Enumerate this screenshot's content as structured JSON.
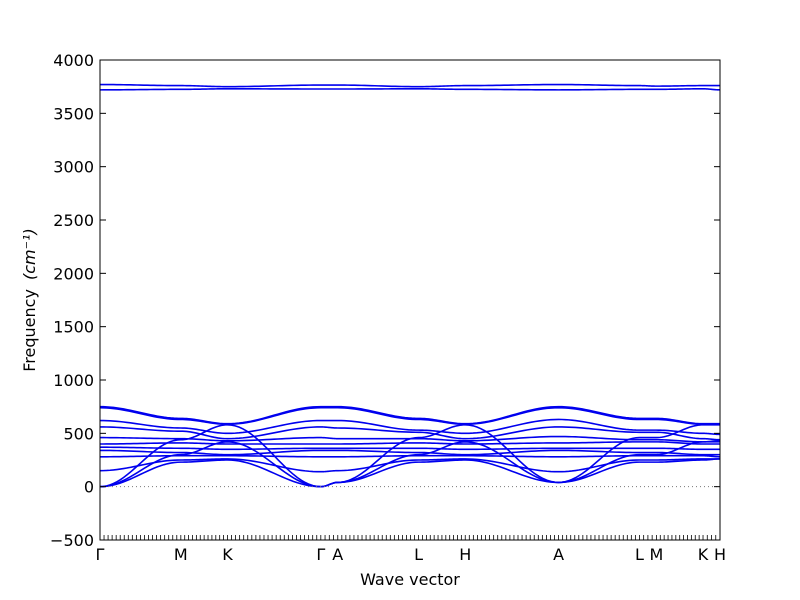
{
  "chart_data": {
    "type": "line",
    "title": "",
    "xlabel": "Wave vector",
    "ylabel": "Frequency",
    "ylabel_unit": "(cm⁻¹)",
    "ylim": [
      -500,
      4000
    ],
    "yticks": [
      -500,
      0,
      500,
      1000,
      1500,
      2000,
      2500,
      3000,
      3500,
      4000
    ],
    "grid": false,
    "legend": "none",
    "line_color": "#0000ee",
    "zero_line": 0,
    "high_points": [
      {
        "label": "Γ",
        "x": 0.0
      },
      {
        "label": "M",
        "x": 1.0
      },
      {
        "label": "K",
        "x": 1.577
      },
      {
        "label": "Γ",
        "x": 2.732
      },
      {
        "label": "A",
        "x": 2.942
      },
      {
        "label": "L",
        "x": 3.942
      },
      {
        "label": "H",
        "x": 4.519
      },
      {
        "label": "A",
        "x": 5.674
      },
      {
        "label": "L",
        "x": 6.674
      },
      {
        "label": "M",
        "x": 6.884
      },
      {
        "label": "K",
        "x": 7.461
      },
      {
        "label": "H",
        "x": 7.671
      }
    ],
    "series": [
      {
        "x": [
          0.0,
          1.0,
          1.577,
          2.732,
          2.942,
          3.942,
          4.519,
          5.674,
          6.674,
          6.884,
          7.461,
          7.671
        ],
        "values": [
          3770,
          3760,
          3750,
          3765,
          3765,
          3750,
          3760,
          3770,
          3760,
          3755,
          3760,
          3760
        ]
      },
      {
        "x": [
          0.0,
          1.0,
          1.577,
          2.732,
          2.942,
          3.942,
          4.519,
          5.674,
          6.674,
          6.884,
          7.461,
          7.671
        ],
        "values": [
          3720,
          3725,
          3730,
          3728,
          3728,
          3730,
          3725,
          3720,
          3725,
          3725,
          3730,
          3720
        ]
      },
      {
        "x": [
          0.0,
          1.0,
          1.577,
          2.732,
          2.942,
          3.942,
          4.519,
          5.674,
          6.674,
          6.884,
          7.461,
          7.671
        ],
        "values": [
          750,
          640,
          590,
          750,
          750,
          640,
          590,
          750,
          640,
          640,
          590,
          590
        ]
      },
      {
        "x": [
          0.0,
          1.0,
          1.577,
          2.732,
          2.942,
          3.942,
          4.519,
          5.674,
          6.674,
          6.884,
          7.461,
          7.671
        ],
        "values": [
          740,
          630,
          585,
          740,
          740,
          630,
          585,
          740,
          630,
          630,
          585,
          585
        ]
      },
      {
        "x": [
          0.0,
          1.0,
          1.577,
          2.732,
          2.942,
          3.942,
          4.519,
          5.674,
          6.674,
          6.884,
          7.461,
          7.671
        ],
        "values": [
          620,
          550,
          500,
          620,
          620,
          530,
          500,
          630,
          530,
          530,
          500,
          490
        ]
      },
      {
        "x": [
          0.0,
          1.0,
          1.577,
          2.732,
          2.942,
          3.942,
          4.519,
          5.674,
          6.674,
          6.884,
          7.461,
          7.671
        ],
        "values": [
          560,
          520,
          450,
          560,
          550,
          510,
          450,
          560,
          510,
          510,
          450,
          440
        ]
      },
      {
        "x": [
          0.0,
          1.0,
          1.577,
          2.732,
          2.942,
          3.942,
          4.519,
          5.674,
          6.674,
          6.884,
          7.461,
          7.671
        ],
        "values": [
          460,
          450,
          430,
          460,
          450,
          450,
          430,
          470,
          440,
          440,
          420,
          420
        ]
      },
      {
        "x": [
          0.0,
          1.0,
          1.577,
          2.732,
          2.942,
          3.942,
          4.519,
          5.674,
          6.674,
          6.884,
          7.461,
          7.671
        ],
        "values": [
          400,
          410,
          400,
          400,
          400,
          410,
          400,
          410,
          420,
          420,
          400,
          400
        ]
      },
      {
        "x": [
          0.0,
          1.0,
          1.577,
          2.732,
          2.942,
          3.942,
          4.519,
          5.674,
          6.674,
          6.884,
          7.461,
          7.671
        ],
        "values": [
          370,
          360,
          350,
          360,
          360,
          360,
          350,
          360,
          360,
          360,
          350,
          350
        ]
      },
      {
        "x": [
          0.0,
          1.0,
          1.577,
          2.732,
          2.942,
          3.942,
          4.519,
          5.674,
          6.674,
          6.884,
          7.461,
          7.671
        ],
        "values": [
          340,
          320,
          300,
          340,
          340,
          320,
          300,
          340,
          320,
          320,
          300,
          300
        ]
      },
      {
        "x": [
          0.0,
          1.0,
          1.577,
          2.732,
          2.942,
          3.942,
          4.519,
          5.674,
          6.674,
          6.884,
          7.461,
          7.671
        ],
        "values": [
          280,
          290,
          290,
          280,
          280,
          290,
          290,
          280,
          290,
          290,
          290,
          280
        ]
      },
      {
        "x": [
          0.0,
          1.0,
          1.577,
          2.732,
          2.942,
          3.942,
          4.519,
          5.674,
          6.674,
          6.884,
          7.461,
          7.671
        ],
        "values": [
          150,
          250,
          260,
          140,
          150,
          250,
          260,
          140,
          250,
          250,
          260,
          260
        ]
      },
      {
        "x": [
          0.0,
          1.0,
          1.577,
          2.732,
          2.942,
          3.942,
          4.519,
          5.674,
          6.674,
          6.884,
          7.461,
          7.671
        ],
        "values": [
          0,
          440,
          580,
          0,
          40,
          460,
          580,
          40,
          460,
          460,
          580,
          580
        ]
      },
      {
        "x": [
          0.0,
          1.0,
          1.577,
          2.732,
          2.942,
          3.942,
          4.519,
          5.674,
          6.674,
          6.884,
          7.461,
          7.671
        ],
        "values": [
          0,
          300,
          420,
          0,
          40,
          300,
          420,
          40,
          300,
          300,
          420,
          430
        ]
      },
      {
        "x": [
          0.0,
          1.0,
          1.577,
          2.732,
          2.942,
          3.942,
          4.519,
          5.674,
          6.674,
          6.884,
          7.461,
          7.671
        ],
        "values": [
          0,
          230,
          250,
          0,
          40,
          230,
          250,
          40,
          230,
          230,
          250,
          260
        ]
      }
    ]
  }
}
